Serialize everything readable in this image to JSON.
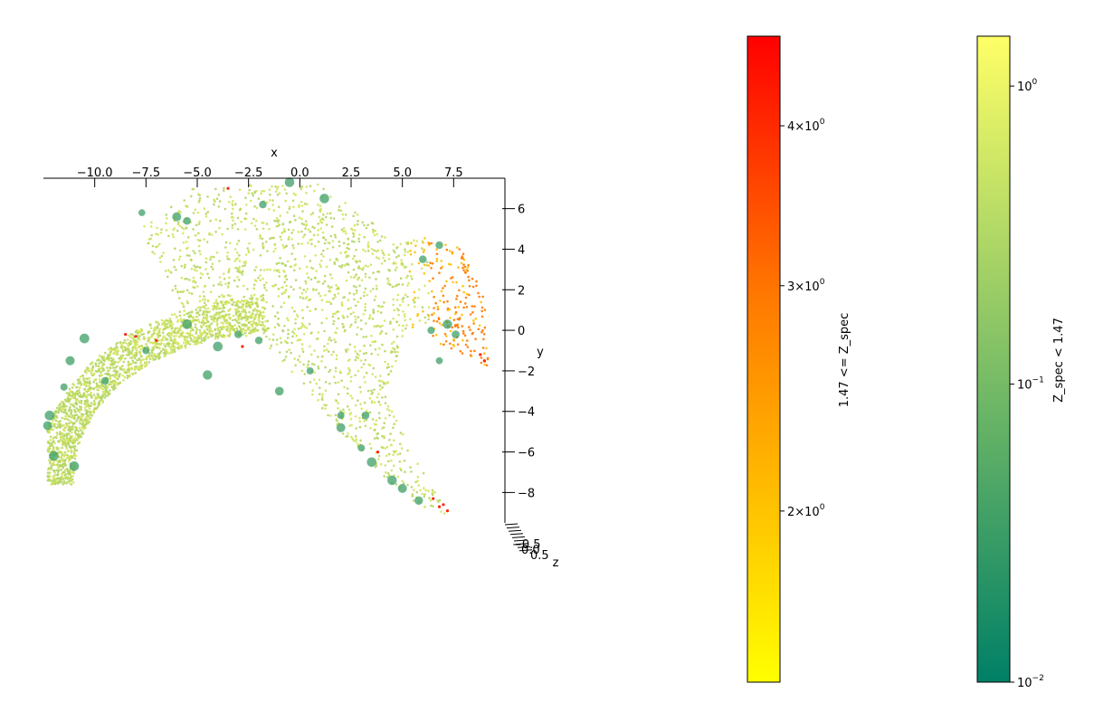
{
  "chart_data": {
    "type": "scatter",
    "projection": "3d",
    "view": "top-down",
    "axes": {
      "x": {
        "label": "x",
        "lim": [
          -12.5,
          10
        ],
        "ticks": [
          "−10.0",
          "−7.5",
          "−5.0",
          "−2.5",
          "0.0",
          "2.5",
          "5.0",
          "7.5"
        ],
        "tick_values": [
          -10,
          -7.5,
          -5,
          -2.5,
          0,
          2.5,
          5,
          7.5
        ]
      },
      "y": {
        "label": "y",
        "lim": [
          -9.5,
          7.5
        ],
        "ticks": [
          "6",
          "4",
          "2",
          "0",
          "−2",
          "−4",
          "−6",
          "−8"
        ],
        "tick_values": [
          6,
          4,
          2,
          0,
          -2,
          -4,
          -6,
          -8
        ]
      },
      "z": {
        "label": "z",
        "ticks": [
          "−0.5",
          "0.0",
          "0.5"
        ]
      }
    },
    "series": [
      {
        "name": "Z_spec < 1.47",
        "colormap": "summer",
        "color_range": [
          "#008066",
          "#ffff66"
        ]
      },
      {
        "name": "1.47 <= Z_spec",
        "colormap": "autumn",
        "color_range": [
          "#ffff00",
          "#ff0000"
        ]
      }
    ],
    "colorbars": [
      {
        "label": "1.47 <= Z_spec",
        "scale": "log",
        "lim": [
          1.47,
          4.7
        ],
        "ticks": [
          {
            "value": 2,
            "mantissa": "2",
            "exponent": "0"
          },
          {
            "value": 3,
            "mantissa": "3",
            "exponent": "0"
          },
          {
            "value": 4,
            "mantissa": "4",
            "exponent": "0"
          }
        ],
        "colors": [
          "#ffff00",
          "#ffd200",
          "#ffa500",
          "#ff7800",
          "#ff3c00",
          "#ff0000"
        ]
      },
      {
        "label": "Z_spec < 1.47",
        "scale": "log",
        "lim": [
          0.01,
          1.47
        ],
        "ticks": [
          {
            "value": 0.01,
            "mantissa": "",
            "exponent": "−2"
          },
          {
            "value": 0.1,
            "mantissa": "",
            "exponent": "−1"
          },
          {
            "value": 1,
            "mantissa": "",
            "exponent": "0"
          }
        ],
        "colors": [
          "#008066",
          "#339966",
          "#66b366",
          "#99cc66",
          "#cce666",
          "#ffff66"
        ]
      }
    ],
    "marker_colors": {
      "light_yellow_green": "#d4e45f",
      "mid_green": "#b5d665",
      "dark_green": "#3d9f67",
      "orange": "#ff7a00",
      "gold": "#ffc000",
      "red": "#ff1a00"
    }
  }
}
